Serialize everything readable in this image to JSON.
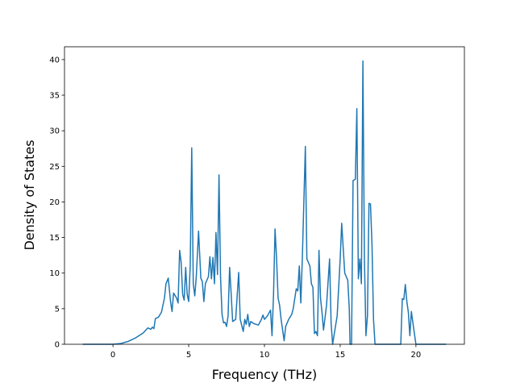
{
  "chart_data": {
    "type": "line",
    "xlabel": "Frequency (THz)",
    "ylabel": "Density of States",
    "xlim": [
      -3.2,
      23.2
    ],
    "ylim": [
      0,
      41.8
    ],
    "xticks": [
      0,
      5,
      10,
      15,
      20
    ],
    "yticks": [
      0,
      5,
      10,
      15,
      20,
      25,
      30,
      35,
      40
    ],
    "series": [
      {
        "color": "#1f77b4",
        "x": [
          -2,
          -1,
          0,
          0.5,
          1,
          1.5,
          2,
          2.3,
          2.5,
          2.6,
          2.7,
          2.8,
          3.0,
          3.2,
          3.4,
          3.5,
          3.65,
          3.8,
          3.9,
          4.0,
          4.2,
          4.3,
          4.4,
          4.5,
          4.6,
          4.7,
          4.8,
          4.9,
          5.0,
          5.1,
          5.2,
          5.3,
          5.4,
          5.5,
          5.65,
          5.8,
          5.9,
          6.0,
          6.1,
          6.3,
          6.4,
          6.5,
          6.6,
          6.7,
          6.8,
          6.9,
          7.0,
          7.1,
          7.2,
          7.3,
          7.4,
          7.5,
          7.6,
          7.7,
          7.8,
          7.9,
          8.1,
          8.3,
          8.4,
          8.6,
          8.7,
          8.8,
          8.9,
          9.0,
          9.1,
          9.3,
          9.6,
          9.8,
          9.9,
          10.0,
          10.2,
          10.4,
          10.5,
          10.6,
          10.7,
          10.8,
          10.9,
          11.0,
          11.1,
          11.3,
          11.4,
          11.6,
          11.8,
          11.9,
          12.1,
          12.2,
          12.3,
          12.4,
          12.5,
          12.7,
          12.8,
          13.0,
          13.1,
          13.2,
          13.3,
          13.4,
          13.5,
          13.6,
          13.7,
          13.8,
          13.9,
          14.1,
          14.3,
          14.4,
          14.5,
          14.8,
          15.0,
          15.1,
          15.3,
          15.5,
          15.6,
          15.65,
          15.75,
          15.85,
          16.0,
          16.1,
          16.2,
          16.3,
          16.4,
          16.5,
          16.6,
          16.7,
          16.8,
          16.9,
          17.0,
          17.1,
          17.2,
          17.3,
          19.0,
          19.1,
          19.2,
          19.3,
          19.4,
          19.5,
          19.6,
          19.7,
          19.8,
          20.0,
          22
        ],
        "values": [
          0,
          0,
          0,
          0.1,
          0.4,
          0.9,
          1.6,
          2.3,
          2.1,
          2.4,
          2.2,
          3.6,
          3.8,
          4.5,
          6.5,
          8.5,
          9.3,
          6,
          4.6,
          7.2,
          6.5,
          5.8,
          13.2,
          11.5,
          7,
          6.2,
          10.8,
          7,
          6,
          11,
          27.6,
          8.5,
          6.8,
          9.5,
          15.9,
          9.3,
          8.8,
          6,
          8.5,
          9.5,
          12.3,
          9.2,
          12.2,
          8.5,
          15.7,
          9.8,
          23.8,
          9.5,
          4.2,
          3,
          3.1,
          2.5,
          4,
          10.8,
          7.2,
          3.2,
          3.5,
          10.1,
          3.5,
          1.8,
          3.5,
          2.8,
          4.2,
          2.5,
          3.2,
          2.9,
          2.7,
          3.5,
          4.1,
          3.5,
          4,
          4.8,
          1.2,
          7,
          16.2,
          12,
          6.5,
          5.5,
          3.5,
          0.5,
          2.5,
          3.5,
          4.2,
          5,
          7.8,
          7.5,
          11,
          5.8,
          12,
          27.8,
          12,
          11,
          8.5,
          8,
          1.5,
          1.8,
          1.2,
          13.2,
          6.5,
          4.5,
          2,
          5.5,
          12,
          3,
          0,
          4,
          12,
          17,
          10,
          9,
          5,
          0,
          0,
          23,
          23.2,
          33.1,
          9.2,
          12,
          8.5,
          39.8,
          12,
          1.2,
          4,
          19.8,
          19.7,
          14,
          3.5,
          0,
          0,
          6.4,
          6.3,
          8.4,
          6,
          4.5,
          1.2,
          4.6,
          3,
          0,
          0
        ]
      }
    ]
  }
}
